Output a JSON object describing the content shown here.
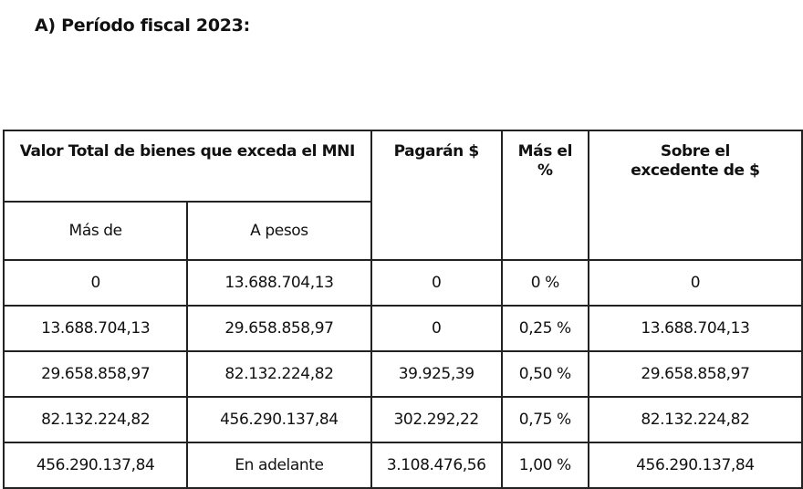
{
  "title": "A) Período fiscal 2023:",
  "table": {
    "headers": {
      "valor_total": "Valor Total de bienes que exceda el MNI",
      "pagaran": "Pagarán $",
      "mas_el": "Más el %",
      "sobre_excedente": "Sobre el excedente de $"
    },
    "subheaders": {
      "mas_de": "Más de",
      "a_pesos": "A pesos"
    },
    "rows": [
      [
        "0",
        "13.688.704,13",
        "0",
        "0 %",
        "0"
      ],
      [
        "13.688.704,13",
        "29.658.858,97",
        "0",
        "0,25 %",
        "13.688.704,13"
      ],
      [
        "29.658.858,97",
        "82.132.224,82",
        "39.925,39",
        "0,50 %",
        "29.658.858,97"
      ],
      [
        "82.132.224,82",
        "456.290.137,84",
        "302.292,22",
        "0,75 %",
        "82.132.224,82"
      ],
      [
        "456.290.137,84",
        "En adelante",
        "3.108.476,56",
        "1,00 %",
        "456.290.137,84"
      ]
    ]
  }
}
